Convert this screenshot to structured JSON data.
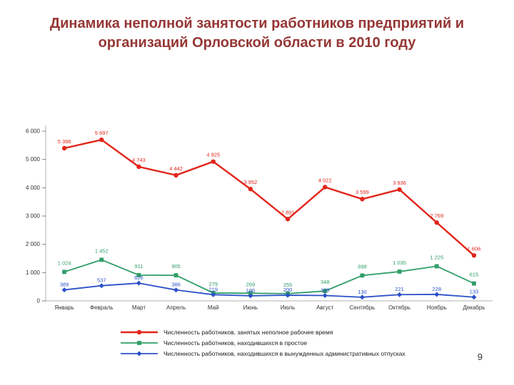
{
  "slide": {
    "title": "Динамика неполной занятости работников предприятий и организаций Орловской области в 2010 году",
    "page_number": "9"
  },
  "chart_data": {
    "type": "line",
    "title": "Динамика неполной занятости работников предприятий и организаций Орловской области в 2010 году",
    "xlabel": "",
    "ylabel": "",
    "ylim": [
      0,
      6000
    ],
    "yticks": [
      0,
      1000,
      2000,
      3000,
      4000,
      5000,
      6000
    ],
    "grid": false,
    "legend_position": "bottom",
    "categories": [
      "Январь",
      "Февраль",
      "Март",
      "Апрель",
      "Май",
      "Июнь",
      "Июль",
      "Август",
      "Сентябрь",
      "Октябрь",
      "Ноябрь",
      "Декабрь"
    ],
    "series": [
      {
        "name": "Численность работников, занятых неполное рабочее время",
        "color": "#e1251b",
        "marker": "circle",
        "label_dy": -7,
        "values": [
          5398,
          5697,
          4743,
          4442,
          4925,
          3952,
          2891,
          4022,
          3599,
          3936,
          2769,
          1606
        ]
      },
      {
        "name": "Численность работников, находившихся в простое",
        "color": "#2f9e68",
        "marker": "square",
        "label_dy": -10,
        "values": [
          1024,
          1452,
          911,
          905,
          279,
          269,
          255,
          348,
          898,
          1035,
          1225,
          615
        ]
      },
      {
        "name": "Численность работников, находившихся в вынужденных административных отпусках",
        "color": "#2b50c8",
        "marker": "diamond",
        "label_dy": -5,
        "values": [
          389,
          537,
          626,
          386,
          219,
          180,
          200,
          189,
          130,
          221,
          228,
          133
        ]
      }
    ]
  }
}
